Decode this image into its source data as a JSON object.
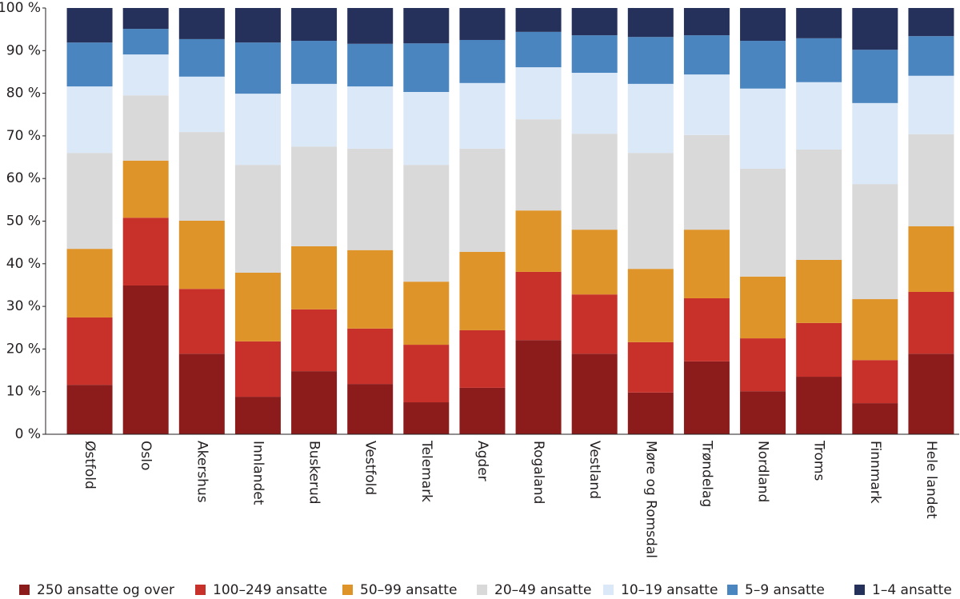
{
  "chart_data": {
    "type": "stacked_bar",
    "categories": [
      "Østfold",
      "Oslo",
      "Akershus",
      "Innlandet",
      "Buskerud",
      "Vestfold",
      "Telemark",
      "Agder",
      "Rogaland",
      "Vestland",
      "Møre og Romsdal",
      "Trøndelag",
      "Nordland",
      "Troms",
      "Finnmark",
      "Hele landet"
    ],
    "series": [
      {
        "name": "250 ansatte og over",
        "color": "#8c1c1c",
        "values": [
          11.6,
          34.9,
          18.9,
          8.8,
          14.8,
          11.8,
          7.5,
          10.9,
          22.1,
          18.9,
          9.8,
          17.1,
          10.1,
          13.5,
          7.3,
          18.9
        ]
      },
      {
        "name": "100–249 ansatte",
        "color": "#c8302a",
        "values": [
          15.8,
          15.9,
          15.2,
          13.0,
          14.5,
          13.0,
          13.5,
          13.5,
          16.0,
          13.9,
          11.8,
          14.8,
          12.4,
          12.6,
          10.1,
          14.5
        ]
      },
      {
        "name": "50–99 ansatte",
        "color": "#df942a",
        "values": [
          16.1,
          13.4,
          16.0,
          16.1,
          14.8,
          18.4,
          14.8,
          18.4,
          14.4,
          15.2,
          17.2,
          16.1,
          14.5,
          14.8,
          14.3,
          15.4
        ]
      },
      {
        "name": "20–49 ansatte",
        "color": "#d9d9d9",
        "values": [
          22.5,
          15.3,
          20.8,
          25.3,
          23.4,
          23.8,
          27.4,
          24.2,
          21.4,
          22.5,
          27.2,
          22.2,
          25.3,
          25.9,
          27.0,
          21.6
        ]
      },
      {
        "name": "10–19 ansatte",
        "color": "#dbe8f7",
        "values": [
          15.6,
          9.6,
          13.0,
          16.7,
          14.7,
          14.6,
          17.1,
          15.4,
          12.2,
          14.3,
          16.2,
          14.2,
          18.8,
          15.8,
          19.0,
          13.7
        ]
      },
      {
        "name": "5–9 ansatte",
        "color": "#4a85c0",
        "values": [
          10.3,
          6.0,
          8.8,
          12.0,
          10.1,
          10.0,
          11.4,
          10.1,
          8.3,
          8.8,
          11.0,
          9.2,
          11.2,
          10.3,
          12.5,
          9.3
        ]
      },
      {
        "name": "1–4 ansatte",
        "color": "#25315a",
        "values": [
          8.1,
          4.9,
          7.3,
          8.1,
          7.7,
          8.4,
          8.3,
          7.5,
          5.6,
          6.4,
          6.8,
          6.4,
          7.7,
          7.1,
          9.8,
          6.6
        ]
      }
    ],
    "ylim": [
      0,
      100
    ],
    "yticks": [
      {
        "value": 0,
        "label": "0 %"
      },
      {
        "value": 10,
        "label": "10 %"
      },
      {
        "value": 20,
        "label": "20 %"
      },
      {
        "value": 30,
        "label": "30 %"
      },
      {
        "value": 40,
        "label": "40 %"
      },
      {
        "value": 50,
        "label": "50 %"
      },
      {
        "value": 60,
        "label": "60 %"
      },
      {
        "value": 70,
        "label": "70 %"
      },
      {
        "value": 80,
        "label": "80 %"
      },
      {
        "value": 90,
        "label": "90 %"
      },
      {
        "value": 100,
        "label": "100 %"
      }
    ],
    "grid": false,
    "legend": "bottom"
  }
}
